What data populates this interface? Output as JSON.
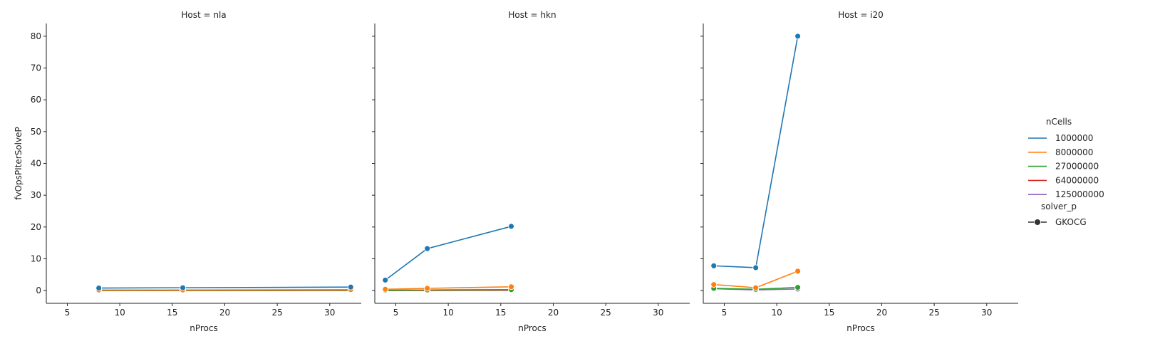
{
  "chart_data": {
    "type": "line",
    "xlabel": "nProcs",
    "ylabel": "fvOpsPIterSolveP",
    "xlim": [
      3,
      33
    ],
    "ylim": [
      -4,
      84
    ],
    "xticks": [
      5,
      10,
      15,
      20,
      25,
      30
    ],
    "yticks": [
      0,
      10,
      20,
      30,
      40,
      50,
      60,
      70,
      80
    ],
    "grid": false,
    "legend_position": "right",
    "legend": {
      "hue_title": "nCells",
      "style_title": "solver_p",
      "style_entry": "GKOCG"
    },
    "colors": {
      "1000000": "#1f77b4",
      "8000000": "#ff7f0e",
      "27000000": "#2ca02c",
      "64000000": "#d62728",
      "125000000": "#9467bd"
    },
    "series_order": [
      "1000000",
      "8000000",
      "27000000",
      "64000000",
      "125000000"
    ],
    "panels": [
      {
        "title": "Host = nla",
        "series": [
          {
            "name": "1000000",
            "x": [
              8,
              16,
              32
            ],
            "y": [
              0.8,
              0.9,
              1.1
            ]
          },
          {
            "name": "8000000",
            "x": [
              8,
              16,
              32
            ],
            "y": [
              0.2,
              0.2,
              0.3
            ]
          },
          {
            "name": "27000000",
            "x": [
              8,
              16,
              32
            ],
            "y": [
              0.1,
              0.1,
              0.15
            ]
          },
          {
            "name": "64000000",
            "x": [
              8,
              16,
              32
            ],
            "y": [
              0.0,
              0.0,
              0.05
            ]
          }
        ]
      },
      {
        "title": "Host = hkn",
        "series": [
          {
            "name": "1000000",
            "x": [
              4,
              8,
              16
            ],
            "y": [
              3.3,
              13.2,
              20.2
            ]
          },
          {
            "name": "8000000",
            "x": [
              4,
              8,
              16
            ],
            "y": [
              0.4,
              0.7,
              1.2
            ]
          },
          {
            "name": "27000000",
            "x": [
              4,
              8,
              16
            ],
            "y": [
              0.1,
              0.2,
              0.3
            ]
          },
          {
            "name": "64000000",
            "x": [
              4,
              8,
              16
            ],
            "y": [
              0.0,
              0.05,
              0.1
            ]
          }
        ]
      },
      {
        "title": "Host = i20",
        "series": [
          {
            "name": "1000000",
            "x": [
              4,
              8,
              12
            ],
            "y": [
              7.8,
              7.2,
              80.0
            ]
          },
          {
            "name": "8000000",
            "x": [
              4,
              8,
              12
            ],
            "y": [
              1.9,
              0.9,
              6.1
            ]
          },
          {
            "name": "27000000",
            "x": [
              4,
              8,
              12
            ],
            "y": [
              0.7,
              0.4,
              1.0
            ]
          },
          {
            "name": "125000000",
            "x": [
              4,
              8,
              12
            ],
            "y": [
              0.6,
              0.2,
              0.5
            ]
          }
        ]
      }
    ]
  }
}
